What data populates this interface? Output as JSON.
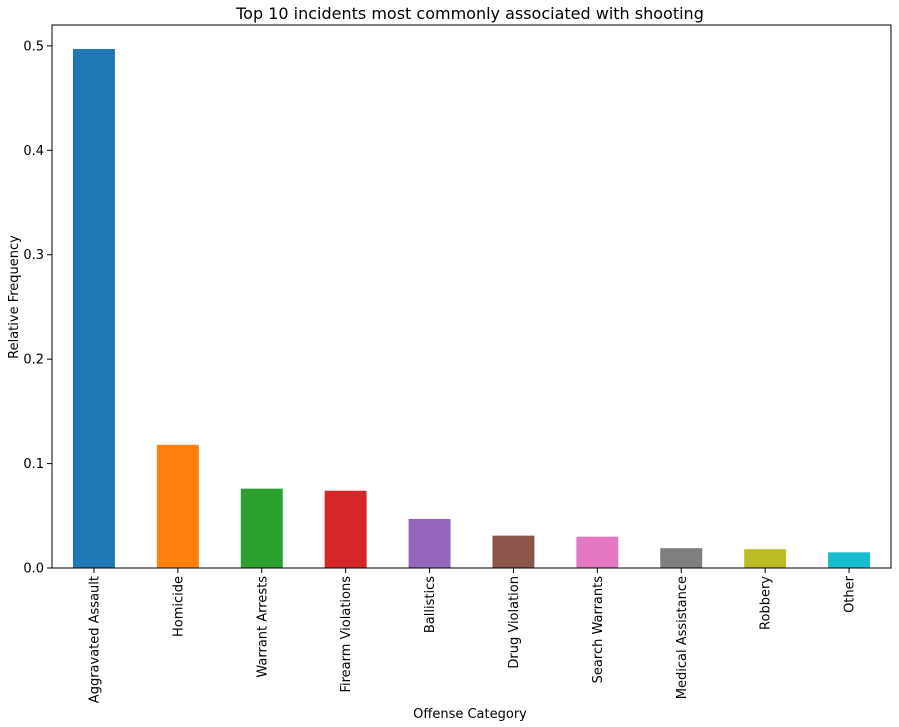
{
  "chart_data": {
    "type": "bar",
    "title": "Top 10 incidents most commonly associated with shooting",
    "xlabel": "Offense Category",
    "ylabel": "Relative Frequency",
    "ylim": [
      0,
      0.52
    ],
    "yticks": [
      0.0,
      0.1,
      0.2,
      0.3,
      0.4,
      0.5
    ],
    "ytick_labels": [
      "0.0",
      "0.1",
      "0.2",
      "0.3",
      "0.4",
      "0.5"
    ],
    "categories": [
      "Aggravated Assault",
      "Homicide",
      "Warrant Arrests",
      "Firearm Violations",
      "Ballistics",
      "Drug Violation",
      "Search Warrants",
      "Medical Assistance",
      "Robbery",
      "Other"
    ],
    "values": [
      0.497,
      0.118,
      0.076,
      0.074,
      0.047,
      0.031,
      0.03,
      0.019,
      0.018,
      0.015
    ],
    "colors": [
      "#1f77b4",
      "#ff7f0e",
      "#2ca02c",
      "#d62728",
      "#9467bd",
      "#8c564b",
      "#e377c2",
      "#7f7f7f",
      "#bcbd22",
      "#17becf"
    ],
    "grid": false,
    "legend": "none"
  }
}
